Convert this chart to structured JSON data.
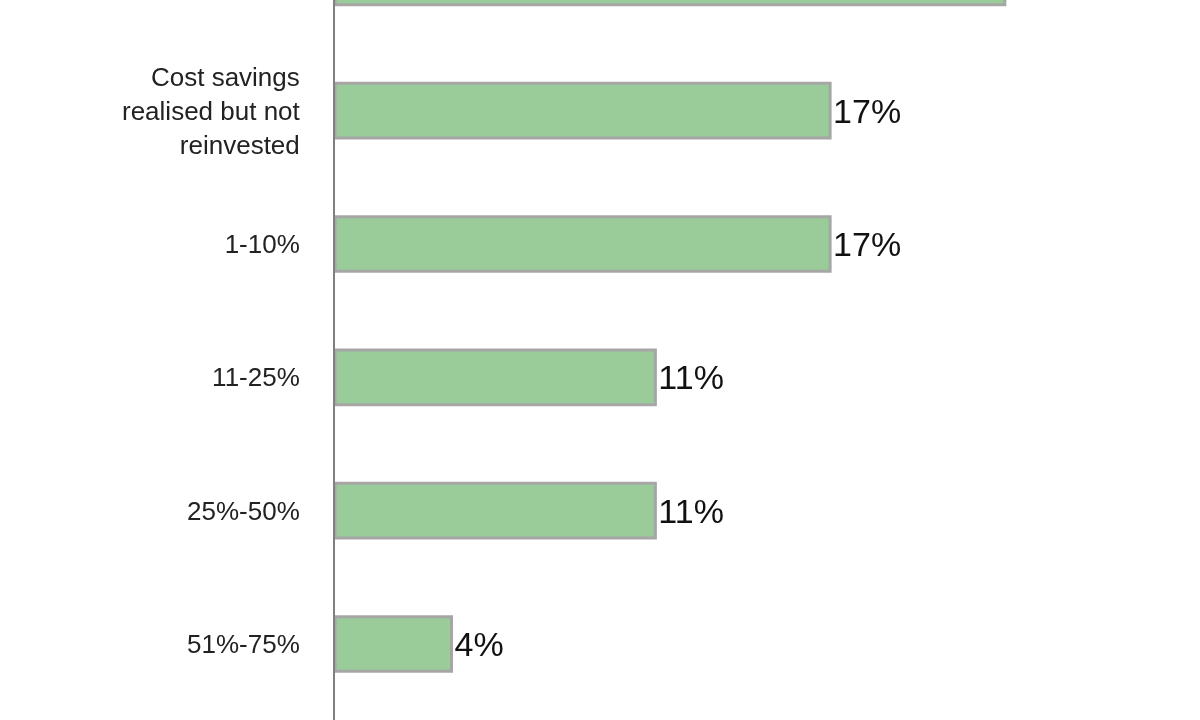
{
  "chart_data": {
    "type": "bar",
    "orientation": "horizontal",
    "categories": [
      null,
      "Cost savings\nrealised but not\nreinvested",
      "1-10%",
      "11-25%",
      "25%-50%",
      "51%-75%"
    ],
    "values": [
      23,
      17,
      17,
      11,
      11,
      4
    ],
    "value_labels": [
      null,
      "17%",
      "17%",
      "11%",
      "11%",
      "4%"
    ],
    "color": "#99cc99",
    "xlim": [
      0,
      29.7
    ],
    "tick_labels": "y"
  }
}
